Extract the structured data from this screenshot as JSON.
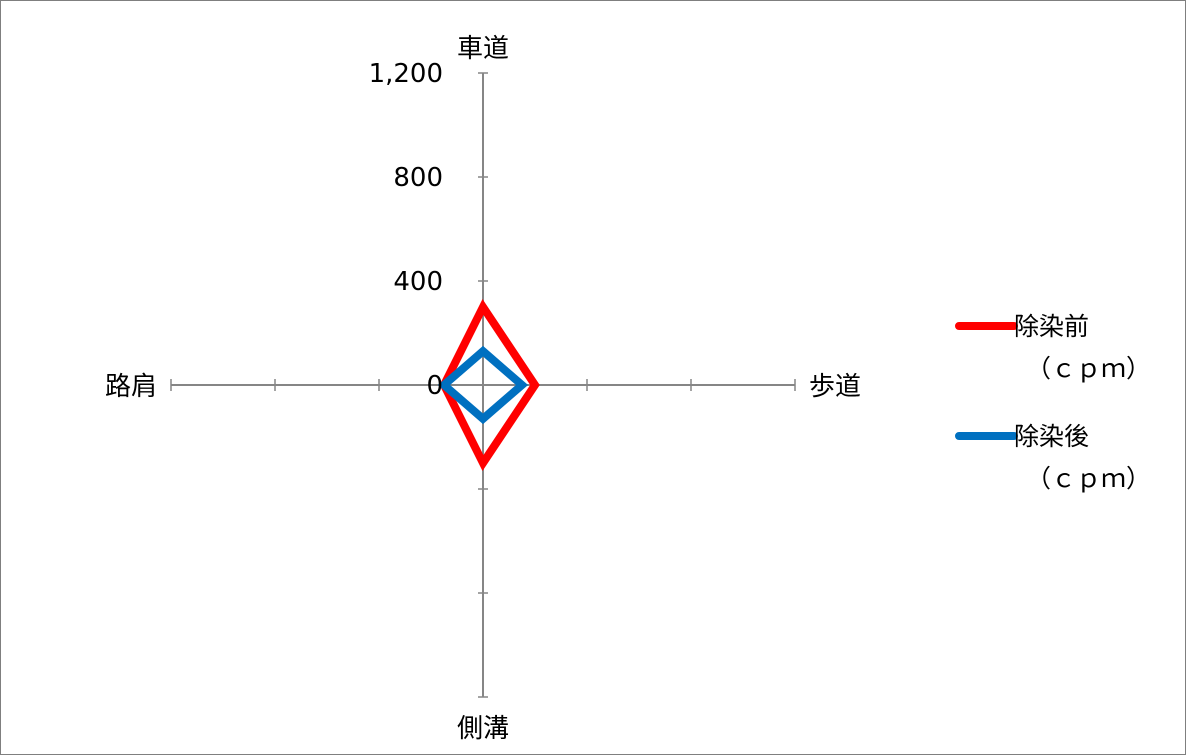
{
  "chart_data": {
    "type": "radar",
    "axes": [
      "車道",
      "歩道",
      "側溝",
      "路肩"
    ],
    "radial_ticks": [
      "0",
      "400",
      "800",
      "1,200"
    ],
    "rlim": [
      0,
      1200
    ],
    "series": [
      {
        "name": "除染前",
        "unit": "（ｃｐｍ）",
        "color": "#ff0000",
        "values": [
          300,
          200,
          300,
          150
        ]
      },
      {
        "name": "除染後",
        "unit": "（ｃｐｍ）",
        "color": "#0070c0",
        "values": [
          130,
          150,
          130,
          150
        ]
      }
    ],
    "legend_position": "right",
    "axis_color": "#868686"
  }
}
